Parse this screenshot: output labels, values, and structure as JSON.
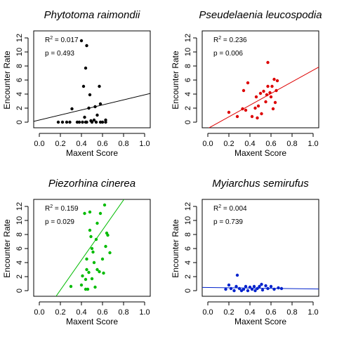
{
  "chart_data": [
    {
      "type": "scatter",
      "title": "Phytotoma raimondii",
      "xlabel": "Maxent Score",
      "ylabel": "Encounter Rate",
      "xlim": [
        0,
        1
      ],
      "ylim": [
        0,
        12
      ],
      "xticks": [
        "0.0",
        "0.2",
        "0.4",
        "0.6",
        "0.8",
        "1.0"
      ],
      "yticks": [
        "0",
        "2",
        "4",
        "6",
        "8",
        "10",
        "12"
      ],
      "stats": {
        "r2_prefix": "R",
        "r2_sup": "2",
        "r2_value": " = 0.017",
        "p": "p = 0.493"
      },
      "color": "#000000",
      "fit": {
        "intercept": 0.3,
        "slope": 3.6
      },
      "points": [
        [
          0.18,
          0.0
        ],
        [
          0.22,
          0.0
        ],
        [
          0.26,
          0.0
        ],
        [
          0.29,
          0.0
        ],
        [
          0.31,
          1.9
        ],
        [
          0.36,
          0.0
        ],
        [
          0.38,
          0.0
        ],
        [
          0.4,
          11.6
        ],
        [
          0.41,
          0.0
        ],
        [
          0.42,
          5.1
        ],
        [
          0.43,
          0.7
        ],
        [
          0.44,
          0.0
        ],
        [
          0.44,
          7.7
        ],
        [
          0.45,
          10.9
        ],
        [
          0.45,
          0.0
        ],
        [
          0.47,
          2.0
        ],
        [
          0.48,
          3.9
        ],
        [
          0.49,
          0.2
        ],
        [
          0.5,
          0.0
        ],
        [
          0.52,
          0.3
        ],
        [
          0.53,
          2.2
        ],
        [
          0.54,
          0.0
        ],
        [
          0.55,
          1.0
        ],
        [
          0.57,
          5.1
        ],
        [
          0.58,
          0.0
        ],
        [
          0.58,
          2.6
        ],
        [
          0.6,
          0.0
        ],
        [
          0.63,
          0.0
        ],
        [
          0.63,
          0.3
        ]
      ]
    },
    {
      "type": "scatter",
      "title": "Pseudelaenia leucospodia",
      "xlabel": "Maxent Score",
      "ylabel": "Encounter Rate",
      "xlim": [
        0,
        1
      ],
      "ylim": [
        0,
        12
      ],
      "xticks": [
        "0.0",
        "0.2",
        "0.4",
        "0.6",
        "0.8",
        "1.0"
      ],
      "yticks": [
        "0",
        "2",
        "4",
        "6",
        "8",
        "10",
        "12"
      ],
      "stats": {
        "r2_prefix": "R",
        "r2_sup": "2",
        "r2_value": " = 0.236",
        "p": "p = 0.006"
      },
      "color": "#dd0000",
      "fit": {
        "intercept": -0.9,
        "slope": 8.3
      },
      "points": [
        [
          0.2,
          1.4
        ],
        [
          0.28,
          0.8
        ],
        [
          0.33,
          1.9
        ],
        [
          0.34,
          4.5
        ],
        [
          0.36,
          1.7
        ],
        [
          0.38,
          5.6
        ],
        [
          0.42,
          0.8
        ],
        [
          0.45,
          2.0
        ],
        [
          0.46,
          3.6
        ],
        [
          0.47,
          0.6
        ],
        [
          0.48,
          2.3
        ],
        [
          0.5,
          4.1
        ],
        [
          0.51,
          1.2
        ],
        [
          0.53,
          4.4
        ],
        [
          0.55,
          2.9
        ],
        [
          0.56,
          3.9
        ],
        [
          0.57,
          5.1
        ],
        [
          0.57,
          8.5
        ],
        [
          0.59,
          4.2
        ],
        [
          0.6,
          3.6
        ],
        [
          0.61,
          5.1
        ],
        [
          0.62,
          1.9
        ],
        [
          0.63,
          6.1
        ],
        [
          0.64,
          2.8
        ],
        [
          0.65,
          4.5
        ],
        [
          0.66,
          5.9
        ]
      ]
    },
    {
      "type": "scatter",
      "title": "Piezorhina cinerea",
      "xlabel": "Maxent Score",
      "ylabel": "Encounter Rate",
      "xlim": [
        0,
        1
      ],
      "ylim": [
        0,
        12
      ],
      "xticks": [
        "0.0",
        "0.2",
        "0.4",
        "0.6",
        "0.8",
        "1.0"
      ],
      "yticks": [
        "0",
        "2",
        "4",
        "6",
        "8",
        "10",
        "12"
      ],
      "stats": {
        "r2_prefix": "R",
        "r2_sup": "2",
        "r2_value": " = 0.159",
        "p": "p = 0.029"
      },
      "color": "#00bb00",
      "fit": {
        "intercept": -4.2,
        "slope": 21.4
      },
      "points": [
        [
          0.3,
          0.6
        ],
        [
          0.4,
          0.8
        ],
        [
          0.41,
          2.1
        ],
        [
          0.43,
          11.0
        ],
        [
          0.44,
          0.2
        ],
        [
          0.44,
          1.6
        ],
        [
          0.45,
          3.0
        ],
        [
          0.45,
          4.5
        ],
        [
          0.46,
          0.2
        ],
        [
          0.47,
          2.6
        ],
        [
          0.48,
          8.6
        ],
        [
          0.48,
          11.2
        ],
        [
          0.49,
          7.7
        ],
        [
          0.5,
          1.7
        ],
        [
          0.5,
          6.0
        ],
        [
          0.51,
          5.5
        ],
        [
          0.52,
          4.0
        ],
        [
          0.53,
          0.5
        ],
        [
          0.54,
          7.3
        ],
        [
          0.55,
          3.0
        ],
        [
          0.55,
          9.6
        ],
        [
          0.57,
          2.7
        ],
        [
          0.58,
          11.0
        ],
        [
          0.6,
          4.5
        ],
        [
          0.61,
          2.5
        ],
        [
          0.62,
          12.2
        ],
        [
          0.63,
          6.3
        ],
        [
          0.64,
          8.2
        ],
        [
          0.65,
          7.9
        ],
        [
          0.67,
          5.4
        ]
      ]
    },
    {
      "type": "scatter",
      "title": "Myiarchus semirufus",
      "xlabel": "Maxent Score",
      "ylabel": "Encounter Rate",
      "xlim": [
        0,
        1
      ],
      "ylim": [
        0,
        12
      ],
      "xticks": [
        "0.0",
        "0.2",
        "0.4",
        "0.6",
        "0.8",
        "1.0"
      ],
      "yticks": [
        "0",
        "2",
        "4",
        "6",
        "8",
        "10",
        "12"
      ],
      "stats": {
        "r2_prefix": "R",
        "r2_sup": "2",
        "r2_value": " = 0.004",
        "p": "p = 0.739"
      },
      "color": "#0022cc",
      "fit": {
        "intercept": 0.45,
        "slope": -0.2
      },
      "points": [
        [
          0.17,
          0.2
        ],
        [
          0.2,
          0.8
        ],
        [
          0.22,
          0.3
        ],
        [
          0.25,
          0.0
        ],
        [
          0.27,
          0.6
        ],
        [
          0.28,
          2.2
        ],
        [
          0.3,
          0.3
        ],
        [
          0.32,
          0.0
        ],
        [
          0.34,
          0.2
        ],
        [
          0.36,
          0.6
        ],
        [
          0.38,
          0.0
        ],
        [
          0.4,
          0.5
        ],
        [
          0.42,
          0.2
        ],
        [
          0.44,
          0.6
        ],
        [
          0.45,
          0.0
        ],
        [
          0.47,
          0.3
        ],
        [
          0.49,
          0.6
        ],
        [
          0.51,
          0.9
        ],
        [
          0.52,
          0.1
        ],
        [
          0.55,
          0.7
        ],
        [
          0.57,
          0.3
        ],
        [
          0.6,
          0.6
        ],
        [
          0.63,
          0.2
        ],
        [
          0.67,
          0.4
        ],
        [
          0.7,
          0.3
        ]
      ]
    }
  ]
}
